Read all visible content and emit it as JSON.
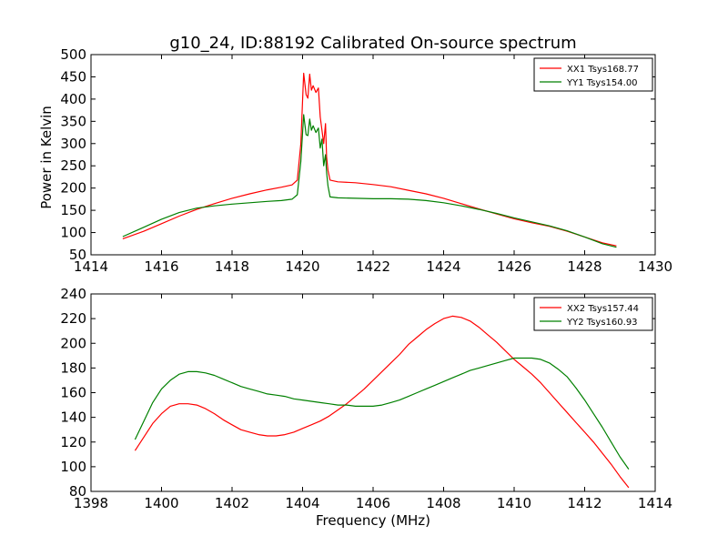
{
  "chart_data": [
    {
      "type": "line",
      "title": "g10_24, ID:88192 Calibrated On-source spectrum",
      "xlabel": "",
      "ylabel": "Power in Kelvin",
      "xlim": [
        1414,
        1430
      ],
      "ylim": [
        50,
        500
      ],
      "xticks": [
        "1414",
        "1416",
        "1418",
        "1420",
        "1422",
        "1424",
        "1426",
        "1428",
        "1430"
      ],
      "yticks": [
        "50",
        "100",
        "150",
        "200",
        "250",
        "300",
        "350",
        "400",
        "450",
        "500"
      ],
      "legend_position": "top-right",
      "series": [
        {
          "name": "XX1 Tsys168.77",
          "color": "#ff0000",
          "points": [
            [
              1414.9,
              86
            ],
            [
              1415.5,
              103
            ],
            [
              1416.0,
              120
            ],
            [
              1416.5,
              137
            ],
            [
              1417.0,
              152
            ],
            [
              1417.5,
              165
            ],
            [
              1418.0,
              177
            ],
            [
              1418.5,
              187
            ],
            [
              1419.0,
              196
            ],
            [
              1419.4,
              202
            ],
            [
              1419.7,
              207
            ],
            [
              1419.85,
              218
            ],
            [
              1419.95,
              300
            ],
            [
              1420.03,
              458
            ],
            [
              1420.1,
              410
            ],
            [
              1420.15,
              402
            ],
            [
              1420.2,
              456
            ],
            [
              1420.25,
              420
            ],
            [
              1420.3,
              430
            ],
            [
              1420.38,
              415
            ],
            [
              1420.45,
              425
            ],
            [
              1420.5,
              360
            ],
            [
              1420.55,
              330
            ],
            [
              1420.6,
              300
            ],
            [
              1420.65,
              345
            ],
            [
              1420.68,
              270
            ],
            [
              1420.72,
              240
            ],
            [
              1420.78,
              218
            ],
            [
              1421.0,
              214
            ],
            [
              1421.5,
              212
            ],
            [
              1422.0,
              208
            ],
            [
              1422.5,
              203
            ],
            [
              1423.0,
              195
            ],
            [
              1423.5,
              187
            ],
            [
              1424.0,
              177
            ],
            [
              1424.5,
              165
            ],
            [
              1425.0,
              153
            ],
            [
              1425.5,
              142
            ],
            [
              1426.0,
              131
            ],
            [
              1426.5,
              122
            ],
            [
              1427.0,
              114
            ],
            [
              1427.5,
              103
            ],
            [
              1428.0,
              90
            ],
            [
              1428.5,
              77
            ],
            [
              1428.9,
              70
            ]
          ]
        },
        {
          "name": "YY1 Tsys154.00",
          "color": "#008000",
          "points": [
            [
              1414.9,
              91
            ],
            [
              1415.5,
              112
            ],
            [
              1416.0,
              130
            ],
            [
              1416.5,
              145
            ],
            [
              1417.0,
              155
            ],
            [
              1417.5,
              160
            ],
            [
              1418.0,
              164
            ],
            [
              1418.5,
              167
            ],
            [
              1419.0,
              170
            ],
            [
              1419.4,
              172
            ],
            [
              1419.7,
              175
            ],
            [
              1419.85,
              185
            ],
            [
              1419.95,
              260
            ],
            [
              1420.03,
              365
            ],
            [
              1420.1,
              320
            ],
            [
              1420.15,
              318
            ],
            [
              1420.2,
              355
            ],
            [
              1420.25,
              330
            ],
            [
              1420.3,
              340
            ],
            [
              1420.38,
              325
            ],
            [
              1420.45,
              335
            ],
            [
              1420.5,
              290
            ],
            [
              1420.55,
              310
            ],
            [
              1420.6,
              250
            ],
            [
              1420.65,
              275
            ],
            [
              1420.68,
              235
            ],
            [
              1420.72,
              205
            ],
            [
              1420.78,
              180
            ],
            [
              1421.0,
              178
            ],
            [
              1421.5,
              177
            ],
            [
              1422.0,
              176
            ],
            [
              1422.5,
              176
            ],
            [
              1423.0,
              175
            ],
            [
              1423.5,
              172
            ],
            [
              1424.0,
              167
            ],
            [
              1424.5,
              160
            ],
            [
              1425.0,
              152
            ],
            [
              1425.5,
              143
            ],
            [
              1426.0,
              133
            ],
            [
              1426.5,
              124
            ],
            [
              1427.0,
              115
            ],
            [
              1427.5,
              104
            ],
            [
              1428.0,
              90
            ],
            [
              1428.5,
              75
            ],
            [
              1428.9,
              67
            ]
          ]
        }
      ]
    },
    {
      "type": "line",
      "title": "",
      "xlabel": "Frequency (MHz)",
      "ylabel": "",
      "xlim": [
        1398,
        1414
      ],
      "ylim": [
        80,
        240
      ],
      "xticks": [
        "1398",
        "1400",
        "1402",
        "1404",
        "1406",
        "1408",
        "1410",
        "1412",
        "1414"
      ],
      "yticks": [
        "80",
        "100",
        "120",
        "140",
        "160",
        "180",
        "200",
        "220",
        "240"
      ],
      "legend_position": "top-right",
      "series": [
        {
          "name": "XX2 Tsys157.44",
          "color": "#ff0000",
          "points": [
            [
              1399.25,
              113
            ],
            [
              1399.5,
              124
            ],
            [
              1399.75,
              135
            ],
            [
              1400.0,
              143
            ],
            [
              1400.25,
              149
            ],
            [
              1400.5,
              151
            ],
            [
              1400.75,
              151
            ],
            [
              1401.0,
              150
            ],
            [
              1401.25,
              147
            ],
            [
              1401.5,
              143
            ],
            [
              1401.75,
              138
            ],
            [
              1402.0,
              134
            ],
            [
              1402.25,
              130
            ],
            [
              1402.5,
              128
            ],
            [
              1402.75,
              126
            ],
            [
              1403.0,
              125
            ],
            [
              1403.25,
              125
            ],
            [
              1403.5,
              126
            ],
            [
              1403.75,
              128
            ],
            [
              1404.0,
              131
            ],
            [
              1404.25,
              134
            ],
            [
              1404.5,
              137
            ],
            [
              1404.75,
              141
            ],
            [
              1405.0,
              146
            ],
            [
              1405.25,
              151
            ],
            [
              1405.5,
              157
            ],
            [
              1405.75,
              163
            ],
            [
              1406.0,
              170
            ],
            [
              1406.25,
              177
            ],
            [
              1406.5,
              184
            ],
            [
              1406.75,
              191
            ],
            [
              1407.0,
              199
            ],
            [
              1407.25,
              205
            ],
            [
              1407.5,
              211
            ],
            [
              1407.75,
              216
            ],
            [
              1408.0,
              220
            ],
            [
              1408.25,
              222
            ],
            [
              1408.5,
              221
            ],
            [
              1408.75,
              218
            ],
            [
              1409.0,
              213
            ],
            [
              1409.25,
              207
            ],
            [
              1409.5,
              201
            ],
            [
              1409.75,
              194
            ],
            [
              1410.0,
              187
            ],
            [
              1410.25,
              181
            ],
            [
              1410.5,
              175
            ],
            [
              1410.75,
              168
            ],
            [
              1411.0,
              160
            ],
            [
              1411.25,
              152
            ],
            [
              1411.5,
              144
            ],
            [
              1411.75,
              136
            ],
            [
              1412.0,
              128
            ],
            [
              1412.25,
              120
            ],
            [
              1412.5,
              111
            ],
            [
              1412.75,
              102
            ],
            [
              1413.0,
              92
            ],
            [
              1413.25,
              83
            ]
          ]
        },
        {
          "name": "YY2 Tsys160.93",
          "color": "#008000",
          "points": [
            [
              1399.25,
              122
            ],
            [
              1399.5,
              137
            ],
            [
              1399.75,
              152
            ],
            [
              1400.0,
              163
            ],
            [
              1400.25,
              170
            ],
            [
              1400.5,
              175
            ],
            [
              1400.75,
              177
            ],
            [
              1401.0,
              177
            ],
            [
              1401.25,
              176
            ],
            [
              1401.5,
              174
            ],
            [
              1401.75,
              171
            ],
            [
              1402.0,
              168
            ],
            [
              1402.25,
              165
            ],
            [
              1402.5,
              163
            ],
            [
              1402.75,
              161
            ],
            [
              1403.0,
              159
            ],
            [
              1403.25,
              158
            ],
            [
              1403.5,
              157
            ],
            [
              1403.75,
              155
            ],
            [
              1404.0,
              154
            ],
            [
              1404.25,
              153
            ],
            [
              1404.5,
              152
            ],
            [
              1404.75,
              151
            ],
            [
              1405.0,
              150
            ],
            [
              1405.25,
              150
            ],
            [
              1405.5,
              149
            ],
            [
              1405.75,
              149
            ],
            [
              1406.0,
              149
            ],
            [
              1406.25,
              150
            ],
            [
              1406.5,
              152
            ],
            [
              1406.75,
              154
            ],
            [
              1407.0,
              157
            ],
            [
              1407.25,
              160
            ],
            [
              1407.5,
              163
            ],
            [
              1407.75,
              166
            ],
            [
              1408.0,
              169
            ],
            [
              1408.25,
              172
            ],
            [
              1408.5,
              175
            ],
            [
              1408.75,
              178
            ],
            [
              1409.0,
              180
            ],
            [
              1409.25,
              182
            ],
            [
              1409.5,
              184
            ],
            [
              1409.75,
              186
            ],
            [
              1410.0,
              188
            ],
            [
              1410.25,
              188
            ],
            [
              1410.5,
              188
            ],
            [
              1410.75,
              187
            ],
            [
              1411.0,
              184
            ],
            [
              1411.25,
              179
            ],
            [
              1411.5,
              173
            ],
            [
              1411.75,
              164
            ],
            [
              1412.0,
              154
            ],
            [
              1412.25,
              143
            ],
            [
              1412.5,
              132
            ],
            [
              1412.75,
              120
            ],
            [
              1413.0,
              108
            ],
            [
              1413.25,
              98
            ]
          ]
        }
      ]
    }
  ]
}
